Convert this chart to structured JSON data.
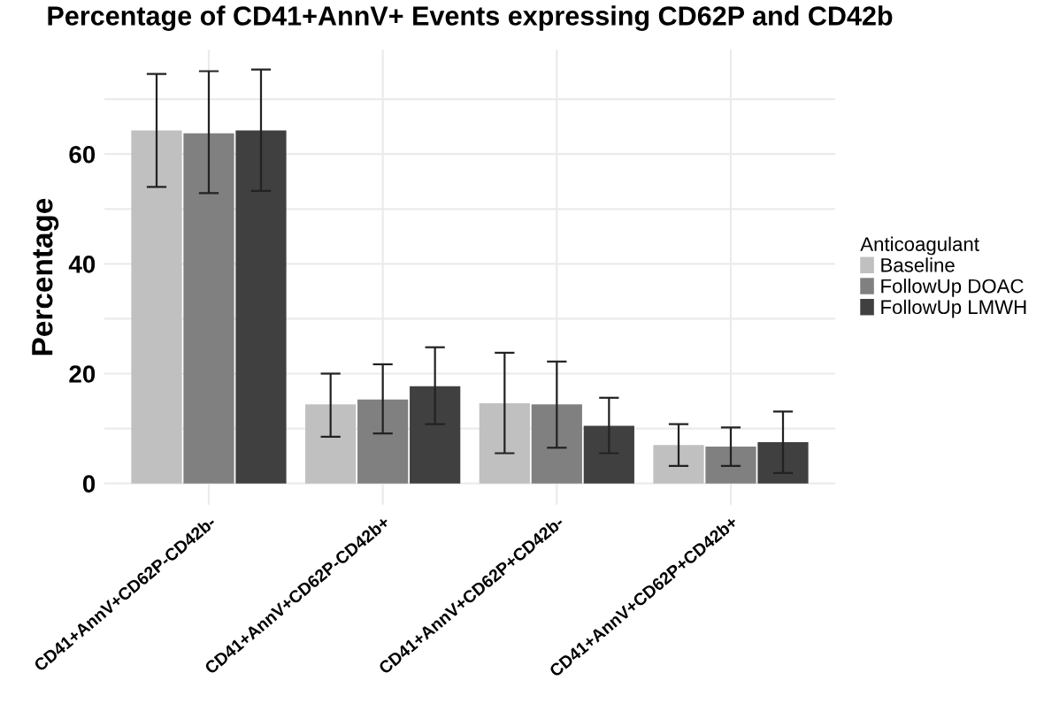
{
  "chart_data": {
    "type": "bar",
    "title": "Percentage of CD41+AnnV+ Events expressing CD62P and CD42b",
    "ylabel": "Percentage",
    "legend_title": "Anticoagulant",
    "categories": [
      "CD41+AnnV+CD62P-CD42b-",
      "CD41+AnnV+CD62P-CD42b+",
      "CD41+AnnV+CD62P+CD42b-",
      "CD41+AnnV+CD62P+CD42b+"
    ],
    "series": [
      {
        "name": "Baseline",
        "color": "#c0c0c0",
        "values": [
          64.3,
          14.4,
          14.6,
          7.0
        ],
        "errors": [
          [
            54.0,
            74.6
          ],
          [
            8.5,
            20.0
          ],
          [
            5.5,
            23.8
          ],
          [
            3.2,
            10.8
          ]
        ]
      },
      {
        "name": "FollowUp DOAC",
        "color": "#808080",
        "values": [
          63.8,
          15.3,
          14.4,
          6.7
        ],
        "errors": [
          [
            52.9,
            75.1
          ],
          [
            9.1,
            21.7
          ],
          [
            6.5,
            22.2
          ],
          [
            3.2,
            10.2
          ]
        ]
      },
      {
        "name": "FollowUp LMWH",
        "color": "#404040",
        "values": [
          64.3,
          17.7,
          10.5,
          7.5
        ],
        "errors": [
          [
            53.3,
            75.4
          ],
          [
            10.8,
            24.8
          ],
          [
            5.5,
            15.6
          ],
          [
            1.9,
            13.1
          ]
        ]
      }
    ],
    "ylim": [
      -3.9,
      79
    ],
    "yticks": [
      0,
      {
        "value": 10,
        "label": null
      },
      20,
      {
        "value": 30,
        "label": null
      },
      40,
      {
        "value": 50,
        "label": null
      },
      60,
      {
        "value": 70,
        "label": null
      }
    ],
    "grid": true,
    "legend": "right"
  }
}
